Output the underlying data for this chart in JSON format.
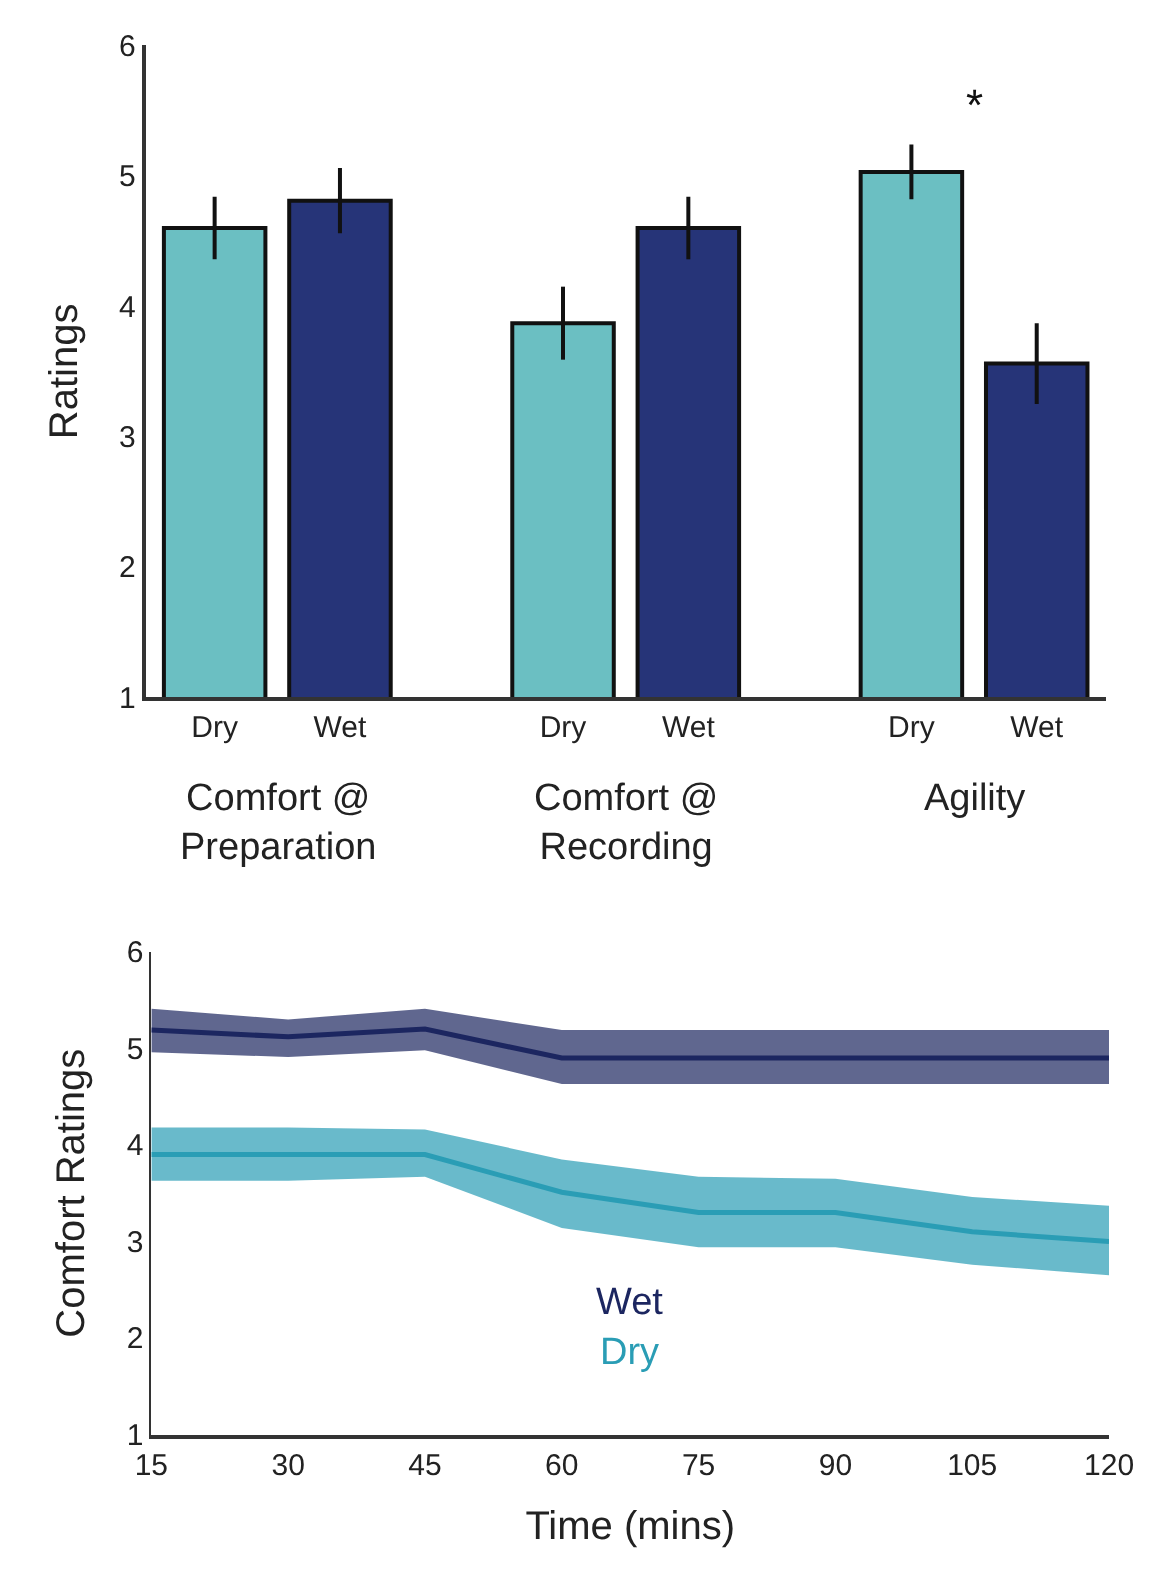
{
  "chart_data": [
    {
      "type": "bar",
      "ylabel": "Ratings",
      "categories": [
        "Dry",
        "Wet",
        "Dry",
        "Wet",
        "Dry",
        "Wet"
      ],
      "values": [
        4.6,
        4.81,
        3.87,
        4.6,
        5.03,
        3.56
      ],
      "errors": [
        0.24,
        0.25,
        0.28,
        0.24,
        0.21,
        0.31
      ],
      "colors": [
        "#6bbfc2",
        "#263478",
        "#6bbfc2",
        "#263478",
        "#6bbfc2",
        "#263478"
      ],
      "ylim": [
        1,
        6
      ],
      "yticks": [
        1,
        2,
        3,
        4,
        5,
        6
      ],
      "grid": false,
      "annotations": [
        "Comfort @\nPreparation",
        "Comfort @\nRecording",
        "Agility",
        "*"
      ]
    },
    {
      "type": "line",
      "xlabel": "Time (mins)",
      "ylabel": "Comfort Ratings",
      "x": [
        15,
        30,
        45,
        60,
        75,
        90,
        105,
        120
      ],
      "series": [
        {
          "name": "Wet",
          "color": "#1c2660",
          "values": [
            5.19,
            5.12,
            5.2,
            4.9,
            4.9,
            4.9,
            4.9,
            4.9
          ],
          "lower": [
            4.96,
            4.91,
            4.98,
            4.63,
            4.63,
            4.63,
            4.63,
            4.63
          ],
          "upper": [
            5.41,
            5.3,
            5.41,
            5.19,
            5.19,
            5.19,
            5.19,
            5.19
          ]
        },
        {
          "name": "Dry",
          "color": "#2a9db5",
          "values": [
            3.9,
            3.9,
            3.9,
            3.51,
            3.3,
            3.3,
            3.1,
            3.0
          ],
          "lower": [
            3.63,
            3.63,
            3.67,
            3.14,
            2.94,
            2.94,
            2.76,
            2.65
          ],
          "upper": [
            4.18,
            4.18,
            4.16,
            3.85,
            3.67,
            3.65,
            3.46,
            3.37
          ]
        }
      ],
      "xlim": [
        15,
        120
      ],
      "xticks": [
        15,
        30,
        45,
        60,
        75,
        90,
        105,
        120
      ],
      "ylim": [
        1,
        6
      ],
      "yticks": [
        1,
        2,
        3,
        4,
        5,
        6
      ],
      "grid": false,
      "legend": "bottom"
    }
  ]
}
